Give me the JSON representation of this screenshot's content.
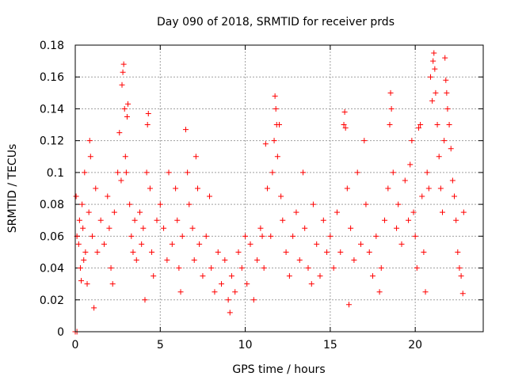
{
  "chart_data": {
    "type": "scatter",
    "title": "Day 090 of 2018, SRMTID for receiver prds",
    "xlabel": "GPS time / hours",
    "ylabel": "SRMTID / TECUs",
    "xlim": [
      0,
      24
    ],
    "ylim": [
      0,
      0.18
    ],
    "x_ticks": [
      0,
      5,
      10,
      15,
      20
    ],
    "x_tick_labels": [
      "0",
      "5",
      "10",
      "15",
      "20"
    ],
    "y_ticks": [
      0,
      0.02,
      0.04,
      0.06,
      0.08,
      0.1,
      0.12,
      0.14,
      0.16,
      0.18
    ],
    "y_tick_labels": [
      "0",
      "0.02",
      "0.04",
      "0.06",
      "0.08",
      "0.1",
      "0.12",
      "0.14",
      "0.16",
      "0.18"
    ],
    "grid": true,
    "marker": "plus",
    "colors": {
      "marker": "#ff0000",
      "grid": "#a0a0a0",
      "axis": "#000000"
    },
    "series": [
      {
        "name": "SRMTID",
        "points": [
          [
            0.0,
            0.0
          ],
          [
            0.1,
            0.0
          ],
          [
            0.05,
            0.085
          ],
          [
            0.1,
            0.06
          ],
          [
            0.2,
            0.055
          ],
          [
            0.25,
            0.07
          ],
          [
            0.3,
            0.04
          ],
          [
            0.35,
            0.032
          ],
          [
            0.4,
            0.08
          ],
          [
            0.45,
            0.065
          ],
          [
            0.5,
            0.045
          ],
          [
            0.55,
            0.1
          ],
          [
            0.6,
            0.05
          ],
          [
            0.7,
            0.03
          ],
          [
            0.8,
            0.075
          ],
          [
            0.85,
            0.12
          ],
          [
            0.9,
            0.11
          ],
          [
            1.0,
            0.06
          ],
          [
            1.1,
            0.015
          ],
          [
            1.2,
            0.09
          ],
          [
            1.3,
            0.05
          ],
          [
            1.5,
            0.07
          ],
          [
            1.7,
            0.055
          ],
          [
            1.9,
            0.085
          ],
          [
            2.0,
            0.065
          ],
          [
            2.1,
            0.04
          ],
          [
            2.2,
            0.03
          ],
          [
            2.3,
            0.075
          ],
          [
            2.5,
            0.1
          ],
          [
            2.6,
            0.125
          ],
          [
            2.7,
            0.095
          ],
          [
            2.75,
            0.155
          ],
          [
            2.8,
            0.163
          ],
          [
            2.85,
            0.168
          ],
          [
            2.9,
            0.14
          ],
          [
            2.95,
            0.11
          ],
          [
            3.0,
            0.1
          ],
          [
            3.05,
            0.135
          ],
          [
            3.1,
            0.143
          ],
          [
            3.2,
            0.08
          ],
          [
            3.3,
            0.06
          ],
          [
            3.4,
            0.05
          ],
          [
            3.5,
            0.07
          ],
          [
            3.6,
            0.045
          ],
          [
            3.8,
            0.075
          ],
          [
            3.9,
            0.055
          ],
          [
            4.0,
            0.065
          ],
          [
            4.1,
            0.02
          ],
          [
            4.2,
            0.1
          ],
          [
            4.25,
            0.13
          ],
          [
            4.3,
            0.137
          ],
          [
            4.4,
            0.09
          ],
          [
            4.5,
            0.05
          ],
          [
            4.6,
            0.035
          ],
          [
            4.8,
            0.07
          ],
          [
            5.0,
            0.08
          ],
          [
            5.2,
            0.065
          ],
          [
            5.4,
            0.045
          ],
          [
            5.5,
            0.1
          ],
          [
            5.7,
            0.055
          ],
          [
            5.9,
            0.09
          ],
          [
            6.0,
            0.07
          ],
          [
            6.1,
            0.04
          ],
          [
            6.2,
            0.025
          ],
          [
            6.3,
            0.06
          ],
          [
            6.5,
            0.127
          ],
          [
            6.6,
            0.1
          ],
          [
            6.7,
            0.08
          ],
          [
            6.9,
            0.065
          ],
          [
            7.0,
            0.045
          ],
          [
            7.1,
            0.11
          ],
          [
            7.2,
            0.09
          ],
          [
            7.3,
            0.055
          ],
          [
            7.5,
            0.035
          ],
          [
            7.7,
            0.06
          ],
          [
            7.9,
            0.085
          ],
          [
            8.0,
            0.04
          ],
          [
            8.2,
            0.025
          ],
          [
            8.4,
            0.05
          ],
          [
            8.6,
            0.03
          ],
          [
            8.8,
            0.045
          ],
          [
            9.0,
            0.02
          ],
          [
            9.1,
            0.012
          ],
          [
            9.2,
            0.035
          ],
          [
            9.4,
            0.025
          ],
          [
            9.6,
            0.05
          ],
          [
            9.8,
            0.04
          ],
          [
            10.0,
            0.06
          ],
          [
            10.1,
            0.03
          ],
          [
            10.3,
            0.055
          ],
          [
            10.5,
            0.02
          ],
          [
            10.7,
            0.045
          ],
          [
            10.9,
            0.065
          ],
          [
            11.0,
            0.06
          ],
          [
            11.1,
            0.04
          ],
          [
            11.2,
            0.118
          ],
          [
            11.3,
            0.09
          ],
          [
            11.5,
            0.06
          ],
          [
            11.6,
            0.1
          ],
          [
            11.7,
            0.12
          ],
          [
            11.75,
            0.148
          ],
          [
            11.8,
            0.14
          ],
          [
            11.85,
            0.13
          ],
          [
            11.9,
            0.11
          ],
          [
            12.0,
            0.13
          ],
          [
            12.1,
            0.085
          ],
          [
            12.2,
            0.07
          ],
          [
            12.4,
            0.05
          ],
          [
            12.6,
            0.035
          ],
          [
            12.8,
            0.06
          ],
          [
            13.0,
            0.075
          ],
          [
            13.2,
            0.045
          ],
          [
            13.4,
            0.1
          ],
          [
            13.5,
            0.065
          ],
          [
            13.7,
            0.04
          ],
          [
            13.9,
            0.03
          ],
          [
            14.0,
            0.08
          ],
          [
            14.2,
            0.055
          ],
          [
            14.4,
            0.035
          ],
          [
            14.6,
            0.07
          ],
          [
            14.8,
            0.05
          ],
          [
            15.0,
            0.06
          ],
          [
            15.2,
            0.04
          ],
          [
            15.4,
            0.075
          ],
          [
            15.6,
            0.05
          ],
          [
            15.8,
            0.13
          ],
          [
            15.85,
            0.138
          ],
          [
            15.9,
            0.128
          ],
          [
            16.0,
            0.09
          ],
          [
            16.1,
            0.017
          ],
          [
            16.2,
            0.065
          ],
          [
            16.4,
            0.045
          ],
          [
            16.6,
            0.1
          ],
          [
            16.8,
            0.055
          ],
          [
            17.0,
            0.12
          ],
          [
            17.1,
            0.08
          ],
          [
            17.3,
            0.05
          ],
          [
            17.5,
            0.035
          ],
          [
            17.7,
            0.06
          ],
          [
            17.9,
            0.025
          ],
          [
            18.0,
            0.04
          ],
          [
            18.2,
            0.07
          ],
          [
            18.4,
            0.09
          ],
          [
            18.5,
            0.13
          ],
          [
            18.55,
            0.15
          ],
          [
            18.6,
            0.14
          ],
          [
            18.7,
            0.1
          ],
          [
            18.9,
            0.065
          ],
          [
            19.0,
            0.08
          ],
          [
            19.2,
            0.055
          ],
          [
            19.4,
            0.095
          ],
          [
            19.6,
            0.07
          ],
          [
            19.7,
            0.105
          ],
          [
            19.8,
            0.12
          ],
          [
            19.9,
            0.075
          ],
          [
            20.0,
            0.06
          ],
          [
            20.1,
            0.04
          ],
          [
            20.2,
            0.128
          ],
          [
            20.3,
            0.13
          ],
          [
            20.4,
            0.085
          ],
          [
            20.5,
            0.05
          ],
          [
            20.6,
            0.025
          ],
          [
            20.7,
            0.1
          ],
          [
            20.8,
            0.09
          ],
          [
            20.9,
            0.16
          ],
          [
            21.0,
            0.145
          ],
          [
            21.05,
            0.17
          ],
          [
            21.1,
            0.175
          ],
          [
            21.15,
            0.165
          ],
          [
            21.2,
            0.15
          ],
          [
            21.3,
            0.13
          ],
          [
            21.4,
            0.11
          ],
          [
            21.5,
            0.09
          ],
          [
            21.6,
            0.075
          ],
          [
            21.7,
            0.12
          ],
          [
            21.75,
            0.172
          ],
          [
            21.8,
            0.158
          ],
          [
            21.85,
            0.15
          ],
          [
            21.9,
            0.14
          ],
          [
            22.0,
            0.13
          ],
          [
            22.1,
            0.115
          ],
          [
            22.2,
            0.095
          ],
          [
            22.3,
            0.085
          ],
          [
            22.4,
            0.07
          ],
          [
            22.5,
            0.05
          ],
          [
            22.6,
            0.04
          ],
          [
            22.7,
            0.035
          ],
          [
            22.8,
            0.024
          ],
          [
            22.85,
            0.075
          ]
        ]
      }
    ]
  }
}
